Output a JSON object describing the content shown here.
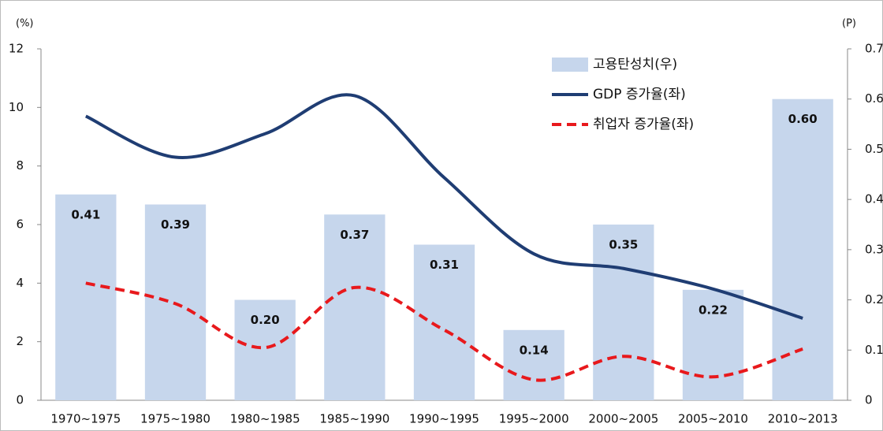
{
  "chart_data": {
    "type": "bar-line",
    "y_unit": "(%)",
    "y2_unit": "(P)",
    "categories": [
      "1970~1975",
      "1975~1980",
      "1980~1985",
      "1985~1990",
      "1990~1995",
      "1995~2000",
      "2000~2005",
      "2005~2010",
      "2010~2013"
    ],
    "series": [
      {
        "name": "고용탄성치(우)",
        "type": "bar",
        "axis": "y2",
        "color": "#c6d6ec",
        "values": [
          0.41,
          0.39,
          0.2,
          0.37,
          0.31,
          0.14,
          0.35,
          0.22,
          0.6
        ],
        "value_labels": [
          "0.41",
          "0.39",
          "0.20",
          "0.37",
          "0.31",
          "0.14",
          "0.35",
          "0.22",
          "0.60"
        ]
      },
      {
        "name": "GDP 증가율(좌)",
        "type": "line",
        "axis": "y",
        "color": "#1f3d73",
        "line_style": "solid",
        "values": [
          9.7,
          8.3,
          9.1,
          10.4,
          7.6,
          5.0,
          4.5,
          3.8,
          2.8
        ]
      },
      {
        "name": "취업자 증가율(좌)",
        "type": "line",
        "axis": "y",
        "color": "#e8191c",
        "line_style": "dashed",
        "values": [
          4.0,
          3.3,
          1.8,
          3.85,
          2.4,
          0.7,
          1.5,
          0.8,
          1.75
        ]
      }
    ],
    "ylim": [
      0,
      12
    ],
    "yticks": [
      0,
      2,
      4,
      6,
      8,
      10,
      12
    ],
    "y2lim": [
      0,
      0.7
    ],
    "y2ticks": [
      0,
      0.1,
      0.2,
      0.3,
      0.4,
      0.5,
      0.6,
      0.7
    ],
    "legend": "top-right"
  }
}
